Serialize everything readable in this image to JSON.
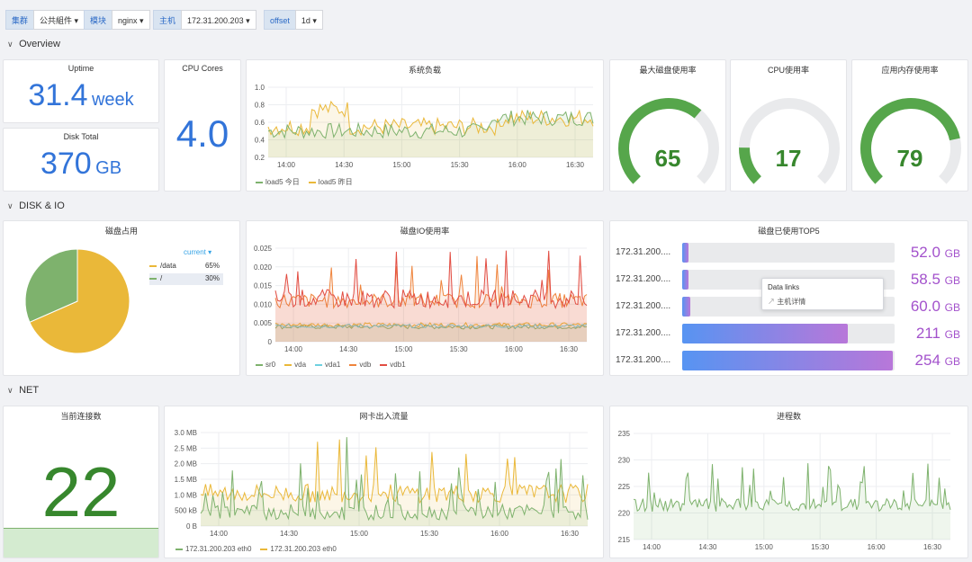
{
  "vars": [
    {
      "label": "集群",
      "value": "公共組件"
    },
    {
      "label": "模块",
      "value": "nginx"
    },
    {
      "label": "主机",
      "value": "172.31.200.203"
    },
    {
      "label": "offset",
      "value": "1d"
    }
  ],
  "rows": {
    "overview": "Overview",
    "disk": "DISK & IO",
    "net": "NET"
  },
  "uptime": {
    "title": "Uptime",
    "value": "31.4",
    "unit": "week"
  },
  "disk_total": {
    "title": "Disk Total",
    "value": "370",
    "unit": "GB"
  },
  "cpu_cores": {
    "title": "CPU Cores",
    "value": "4.0"
  },
  "load": {
    "title": "系统负载",
    "legend": [
      "load5 今日",
      "load5 昨日"
    ],
    "colors": [
      "#7eb26d",
      "#eab839"
    ],
    "yticks": [
      "1.0",
      "0.8",
      "0.6",
      "0.4",
      "0.2"
    ],
    "xticks": [
      "14:00",
      "14:30",
      "15:00",
      "15:30",
      "16:00",
      "16:30"
    ]
  },
  "gauges": [
    {
      "title": "最大磁盘使用率",
      "value": "65",
      "pct": 65
    },
    {
      "title": "CPU使用率",
      "value": "17",
      "pct": 17
    },
    {
      "title": "应用内存使用率",
      "value": "79",
      "pct": 79
    }
  ],
  "disk_pie": {
    "title": "磁盘占用",
    "current_label": "current",
    "items": [
      {
        "name": "/data",
        "value": "65%",
        "pct": 65,
        "color": "#eab839"
      },
      {
        "name": "/",
        "value": "30%",
        "pct": 30,
        "color": "#7eb26d"
      }
    ]
  },
  "disk_io": {
    "title": "磁盘IO使用率",
    "yticks": [
      "0.025",
      "0.020",
      "0.015",
      "0.010",
      "0.005",
      "0"
    ],
    "xticks": [
      "14:00",
      "14:30",
      "15:00",
      "15:30",
      "16:00",
      "16:30"
    ],
    "legend": [
      "sr0",
      "vda",
      "vda1",
      "vdb",
      "vdb1"
    ],
    "colors": [
      "#7eb26d",
      "#eab839",
      "#6ed0e0",
      "#ef843c",
      "#e24d42"
    ]
  },
  "top5": {
    "title": "磁盘已使用TOP5",
    "items": [
      {
        "label": "172.31.200....",
        "value": "52.0",
        "unit": "GB",
        "fill": 0.01
      },
      {
        "label": "172.31.200....",
        "value": "58.5",
        "unit": "GB",
        "fill": 0.03
      },
      {
        "label": "172.31.200....",
        "value": "60.0",
        "unit": "GB",
        "fill": 0.04
      },
      {
        "label": "172.31.200....",
        "value": "211",
        "unit": "GB",
        "fill": 0.78
      },
      {
        "label": "172.31.200....",
        "value": "254",
        "unit": "GB",
        "fill": 0.99
      }
    ],
    "tooltip": {
      "title": "Data links",
      "link": "主机详情"
    }
  },
  "connections": {
    "title": "当前连接数",
    "value": "22"
  },
  "net": {
    "title": "网卡出入流量",
    "yticks": [
      "3.0 MB",
      "2.5 MB",
      "2.0 MB",
      "1.5 MB",
      "1.0 MB",
      "500 kB",
      "0 B"
    ],
    "xticks": [
      "14:00",
      "14:30",
      "15:00",
      "15:30",
      "16:00",
      "16:30"
    ],
    "legend": [
      "172.31.200.203 eth0",
      "172.31.200.203 eth0"
    ],
    "colors": [
      "#7eb26d",
      "#eab839"
    ]
  },
  "procs": {
    "title": "进程数",
    "yticks": [
      "235",
      "230",
      "225",
      "220",
      "215"
    ],
    "xticks": [
      "14:00",
      "14:30",
      "15:00",
      "15:30",
      "16:00",
      "16:30"
    ],
    "color": "#7eb26d"
  }
}
